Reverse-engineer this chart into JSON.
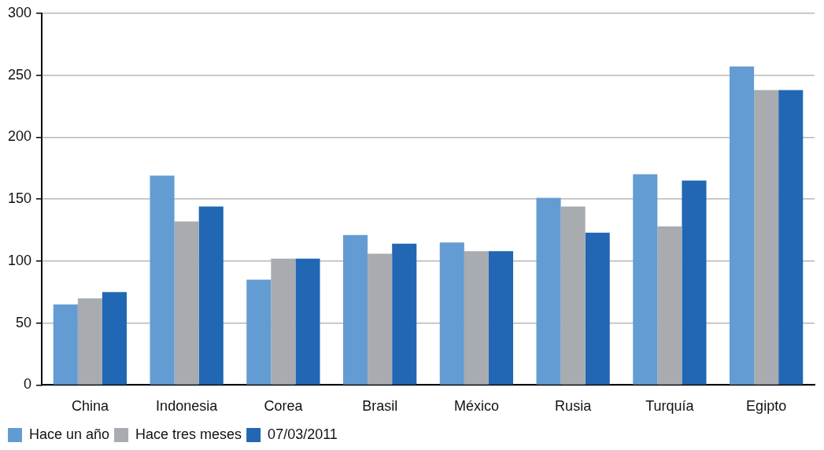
{
  "chart_data": {
    "type": "bar",
    "categories": [
      "China",
      "Indonesia",
      "Corea",
      "Brasil",
      "México",
      "Rusia",
      "Turquía",
      "Egipto"
    ],
    "series": [
      {
        "name": "Hace un año",
        "color": "#639cd3",
        "values": [
          65,
          169,
          85,
          121,
          115,
          151,
          170,
          257
        ]
      },
      {
        "name": "Hace tres meses",
        "color": "#a8abb0",
        "values": [
          70,
          132,
          102,
          106,
          108,
          144,
          128,
          238
        ]
      },
      {
        "name": "07/03/2011",
        "color": "#2167b3",
        "values": [
          75,
          144,
          102,
          114,
          108,
          123,
          165,
          238
        ]
      }
    ],
    "ylim": [
      0,
      300
    ],
    "yticks": [
      0,
      50,
      100,
      150,
      200,
      250,
      300
    ],
    "grid": "y",
    "legend": "bottom left"
  }
}
